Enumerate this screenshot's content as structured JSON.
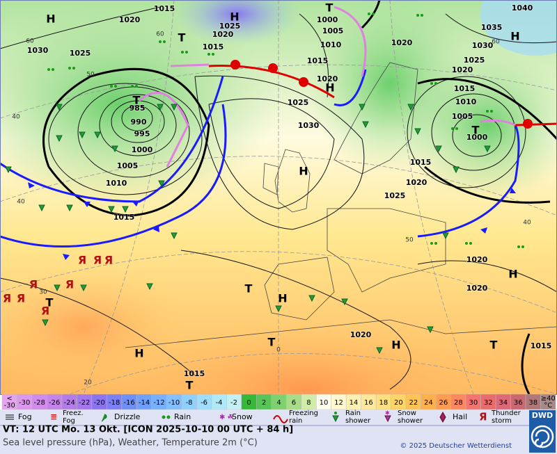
{
  "map": {
    "labels": [
      "H",
      "1015",
      "H",
      "1025",
      "T",
      "1040",
      "1020",
      "1020",
      "1000",
      "1005",
      "1035",
      "T",
      "1015",
      "1010",
      "1020",
      "1030",
      "H",
      "1030",
      "1025",
      "1015",
      "1025",
      "1020",
      "1020",
      "H",
      "1015",
      "T",
      "985",
      "1025",
      "1010",
      "990",
      "1005",
      "1030",
      "995",
      "T",
      "1000",
      "1000",
      "1005",
      "1015",
      "H",
      "1010",
      "1020",
      "1025",
      "1015",
      "1020",
      "H",
      "T",
      "H",
      "1020",
      "T",
      "1020",
      "H",
      "T",
      "T",
      "1015",
      "H",
      "1015",
      "T"
    ],
    "grid_labels": [
      "60",
      "60",
      "50",
      "40",
      "40",
      "40",
      "30",
      "20",
      "0",
      "60",
      "50"
    ]
  },
  "scale": {
    "below": [
      "<",
      "-30"
    ],
    "below_color": "#e4a4f0",
    "labels": [
      "-30",
      "-28",
      "-26",
      "-24",
      "-22",
      "-20",
      "-18",
      "-16",
      "-14",
      "-12",
      "-10",
      "-8",
      "-6",
      "-4",
      "-2",
      "0",
      "2",
      "4",
      "6",
      "8",
      "10",
      "12",
      "14",
      "16",
      "18",
      "20",
      "22",
      "24",
      "26",
      "28",
      "30",
      "32",
      "34",
      "36",
      "38"
    ],
    "colors": [
      "#dc98ec",
      "#d08ce8",
      "#c484e8",
      "#b47ce8",
      "#a478ec",
      "#8c74f0",
      "#7c80f4",
      "#7090f8",
      "#70a0fc",
      "#78b0ff",
      "#84c0ff",
      "#90d0ff",
      "#a0dcfc",
      "#b0e8f8",
      "#c4f0f4",
      "#38b838",
      "#58c458",
      "#80d070",
      "#a8dc88",
      "#d0eca8",
      "#fffff0",
      "#fff8d0",
      "#fff0b4",
      "#ffe89c",
      "#ffe080",
      "#ffd468",
      "#ffc454",
      "#ffb048",
      "#ff9c50",
      "#fc8860",
      "#f47470",
      "#e86c6c",
      "#dc6878",
      "#c86870",
      "#b07878"
    ],
    "above": [
      "≥40",
      "°C"
    ],
    "above_color": "#a88888"
  },
  "legend": [
    {
      "lines": [
        "Fog"
      ]
    },
    {
      "lines": [
        "Freez.",
        "Fog"
      ]
    },
    {
      "lines": [
        "Drizzle"
      ]
    },
    {
      "lines": [
        "Rain"
      ]
    },
    {
      "lines": [
        "Snow"
      ]
    },
    {
      "lines": [
        "Freezing",
        "rain"
      ]
    },
    {
      "lines": [
        "Rain",
        "shower"
      ]
    },
    {
      "lines": [
        "Snow",
        "shower"
      ]
    },
    {
      "lines": [
        "Hail"
      ]
    },
    {
      "lines": [
        "Thunder",
        "storm"
      ]
    }
  ],
  "footer": {
    "valid_time": "VT: 12 UTC Mo.  13 Okt. [ICON 2025-10-10  00 UTC + 84 h]",
    "description": "Sea level pressure (hPa), Weather, Temperature 2m (°C)",
    "copyright": "© 2025 Deutscher Wetterdienst",
    "logo": "DWD"
  }
}
